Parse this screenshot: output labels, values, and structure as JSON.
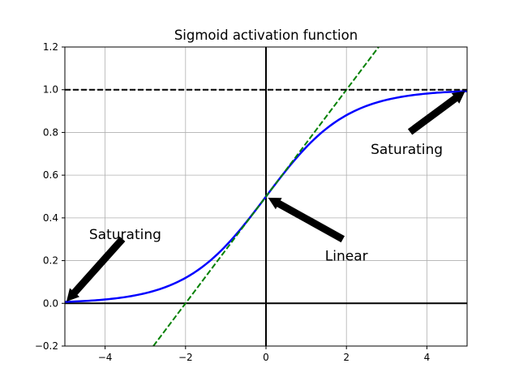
{
  "chart_data": {
    "type": "line",
    "title": "Sigmoid activation function",
    "xlabel": "",
    "ylabel": "",
    "xlim": [
      -5,
      5
    ],
    "ylim": [
      -0.2,
      1.2
    ],
    "grid": true,
    "x_ticks": [
      -4,
      -2,
      0,
      2,
      4
    ],
    "x_tick_labels": [
      "−4",
      "−2",
      "0",
      "2",
      "4"
    ],
    "y_ticks": [
      -0.2,
      0.0,
      0.2,
      0.4,
      0.6,
      0.8,
      1.0,
      1.2
    ],
    "y_tick_labels": [
      "−0.2",
      "0.0",
      "0.2",
      "0.4",
      "0.6",
      "0.8",
      "1.0",
      "1.2"
    ],
    "series": [
      {
        "kind": "curve",
        "style": "solid",
        "color": "#0000ff",
        "x": [
          -5,
          -4.5,
          -4,
          -3.5,
          -3,
          -2.5,
          -2,
          -1.5,
          -1,
          -0.5,
          0,
          0.5,
          1,
          1.5,
          2,
          2.5,
          3,
          3.5,
          4,
          4.5,
          5
        ],
        "y": [
          0.0067,
          0.011,
          0.018,
          0.0293,
          0.0474,
          0.0759,
          0.1192,
          0.1824,
          0.2689,
          0.3775,
          0.5,
          0.6225,
          0.7311,
          0.8176,
          0.8808,
          0.9241,
          0.9526,
          0.9707,
          0.982,
          0.989,
          0.9933
        ]
      },
      {
        "kind": "tangent",
        "style": "dashed",
        "color": "#008000",
        "x": [
          -2.8,
          2.8
        ],
        "y": [
          -0.2,
          1.2
        ]
      },
      {
        "kind": "asymptote",
        "style": "dashed",
        "color": "#000000",
        "x": [
          -5,
          5
        ],
        "y": [
          1,
          1
        ]
      }
    ],
    "reference_lines": {
      "y": 0,
      "x": 0,
      "color": "#000000"
    },
    "annotations": [
      {
        "text": "Saturating",
        "text_xy": [
          3.5,
          0.7
        ],
        "arrow_xy": [
          5,
          1
        ]
      },
      {
        "text": "Saturating",
        "text_xy": [
          -3.5,
          0.3
        ],
        "arrow_xy": [
          -5,
          0
        ]
      },
      {
        "text": "Linear",
        "text_xy": [
          2,
          0.2
        ],
        "arrow_xy": [
          0,
          0.5
        ]
      }
    ]
  }
}
